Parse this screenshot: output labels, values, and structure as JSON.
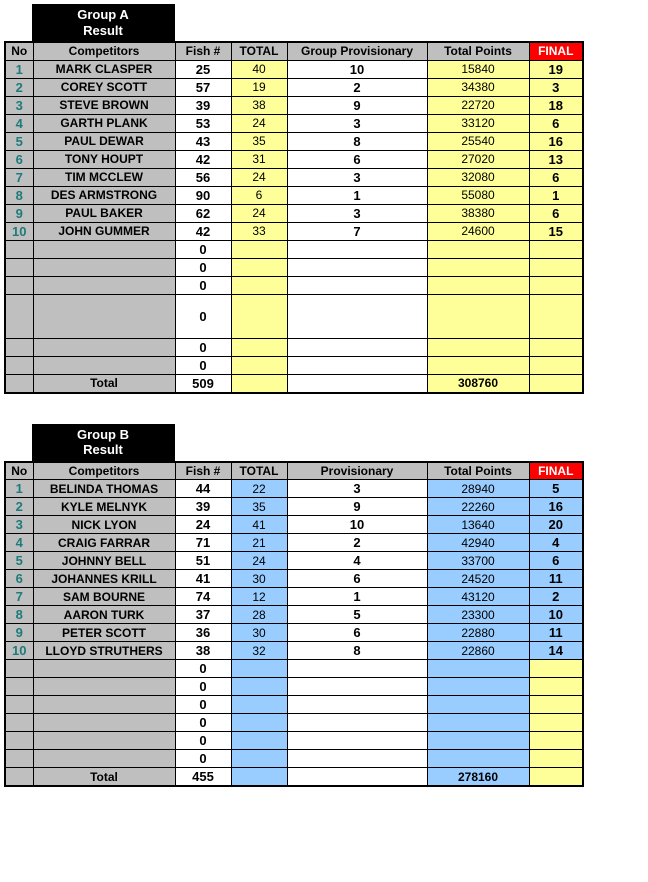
{
  "groups": [
    {
      "title_lines": [
        "Group A",
        "Result"
      ],
      "accent": "yellow",
      "headers": {
        "no": "No",
        "comp": "Competitors",
        "fish": "Fish #",
        "total": "TOTAL",
        "prov": "Group Provisionary",
        "pts": "Total Points",
        "final": "FINAL"
      },
      "rows": [
        {
          "no": "1",
          "name": "MARK CLASPER",
          "fish": "25",
          "total": "40",
          "prov": "10",
          "pts": "15840",
          "fin": "19"
        },
        {
          "no": "2",
          "name": "COREY SCOTT",
          "fish": "57",
          "total": "19",
          "prov": "2",
          "pts": "34380",
          "fin": "3"
        },
        {
          "no": "3",
          "name": "STEVE BROWN",
          "fish": "39",
          "total": "38",
          "prov": "9",
          "pts": "22720",
          "fin": "18"
        },
        {
          "no": "4",
          "name": "GARTH PLANK",
          "fish": "53",
          "total": "24",
          "prov": "3",
          "pts": "33120",
          "fin": "6"
        },
        {
          "no": "5",
          "name": "PAUL DEWAR",
          "fish": "43",
          "total": "35",
          "prov": "8",
          "pts": "25540",
          "fin": "16"
        },
        {
          "no": "6",
          "name": "TONY HOUPT",
          "fish": "42",
          "total": "31",
          "prov": "6",
          "pts": "27020",
          "fin": "13"
        },
        {
          "no": "7",
          "name": "TIM MCCLEW",
          "fish": "56",
          "total": "24",
          "prov": "3",
          "pts": "32080",
          "fin": "6"
        },
        {
          "no": "8",
          "name": "DES ARMSTRONG",
          "fish": "90",
          "total": "6",
          "prov": "1",
          "pts": "55080",
          "fin": "1"
        },
        {
          "no": "9",
          "name": "PAUL BAKER",
          "fish": "62",
          "total": "24",
          "prov": "3",
          "pts": "38380",
          "fin": "6"
        },
        {
          "no": "10",
          "name": "JOHN GUMMER",
          "fish": "42",
          "total": "33",
          "prov": "7",
          "pts": "24600",
          "fin": "15"
        }
      ],
      "empties": [
        {
          "fish": "0",
          "tall": false
        },
        {
          "fish": "0",
          "tall": false
        },
        {
          "fish": "0",
          "tall": false
        },
        {
          "fish": "0",
          "tall": true
        },
        {
          "fish": "0",
          "tall": false
        },
        {
          "fish": "0",
          "tall": false
        }
      ],
      "total": {
        "label": "Total",
        "fish": "509",
        "pts": "308760"
      }
    },
    {
      "title_lines": [
        "Group B",
        "Result"
      ],
      "accent": "blue",
      "headers": {
        "no": "No",
        "comp": "Competitors",
        "fish": "Fish #",
        "total": "TOTAL",
        "prov": "Provisionary",
        "pts": "Total Points",
        "final": "FINAL"
      },
      "rows": [
        {
          "no": "1",
          "name": "BELINDA THOMAS",
          "fish": "44",
          "total": "22",
          "prov": "3",
          "pts": "28940",
          "fin": "5"
        },
        {
          "no": "2",
          "name": "KYLE MELNYK",
          "fish": "39",
          "total": "35",
          "prov": "9",
          "pts": "22260",
          "fin": "16"
        },
        {
          "no": "3",
          "name": "NICK LYON",
          "fish": "24",
          "total": "41",
          "prov": "10",
          "pts": "13640",
          "fin": "20"
        },
        {
          "no": "4",
          "name": "CRAIG FARRAR",
          "fish": "71",
          "total": "21",
          "prov": "2",
          "pts": "42940",
          "fin": "4"
        },
        {
          "no": "5",
          "name": "JOHNNY BELL",
          "fish": "51",
          "total": "24",
          "prov": "4",
          "pts": "33700",
          "fin": "6"
        },
        {
          "no": "6",
          "name": "JOHANNES KRILL",
          "fish": "41",
          "total": "30",
          "prov": "6",
          "pts": "24520",
          "fin": "11"
        },
        {
          "no": "7",
          "name": "SAM BOURNE",
          "fish": "74",
          "total": "12",
          "prov": "1",
          "pts": "43120",
          "fin": "2"
        },
        {
          "no": "8",
          "name": "AARON TURK",
          "fish": "37",
          "total": "28",
          "prov": "5",
          "pts": "23300",
          "fin": "10"
        },
        {
          "no": "9",
          "name": "PETER SCOTT",
          "fish": "36",
          "total": "30",
          "prov": "6",
          "pts": "22880",
          "fin": "11"
        },
        {
          "no": "10",
          "name": "LLOYD STRUTHERS",
          "fish": "38",
          "total": "32",
          "prov": "8",
          "pts": "22860",
          "fin": "14"
        }
      ],
      "empties": [
        {
          "fish": "0",
          "tall": false
        },
        {
          "fish": "0",
          "tall": false
        },
        {
          "fish": "0",
          "tall": false
        },
        {
          "fish": "0",
          "tall": false
        },
        {
          "fish": "0",
          "tall": false
        },
        {
          "fish": "0",
          "tall": false
        }
      ],
      "total": {
        "label": "Total",
        "fish": "455",
        "pts": "278160"
      }
    }
  ]
}
